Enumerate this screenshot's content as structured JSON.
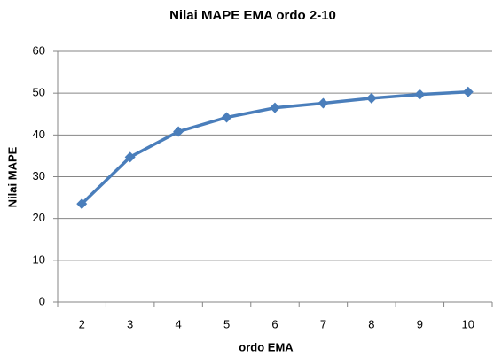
{
  "chart_data": {
    "type": "line",
    "title": "Nilai MAPE EMA ordo 2-10",
    "x_label": "ordo EMA",
    "y_label": "Nilai MAPE",
    "categories": [
      2,
      3,
      4,
      5,
      6,
      7,
      8,
      9,
      10
    ],
    "values": [
      23.5,
      34.7,
      40.8,
      44.2,
      46.5,
      47.6,
      48.8,
      49.7,
      50.3
    ],
    "color": "#4a7ebb",
    "ylim": [
      0,
      60
    ],
    "yticks": [
      0,
      10,
      20,
      30,
      40,
      50,
      60
    ],
    "grid": true
  }
}
